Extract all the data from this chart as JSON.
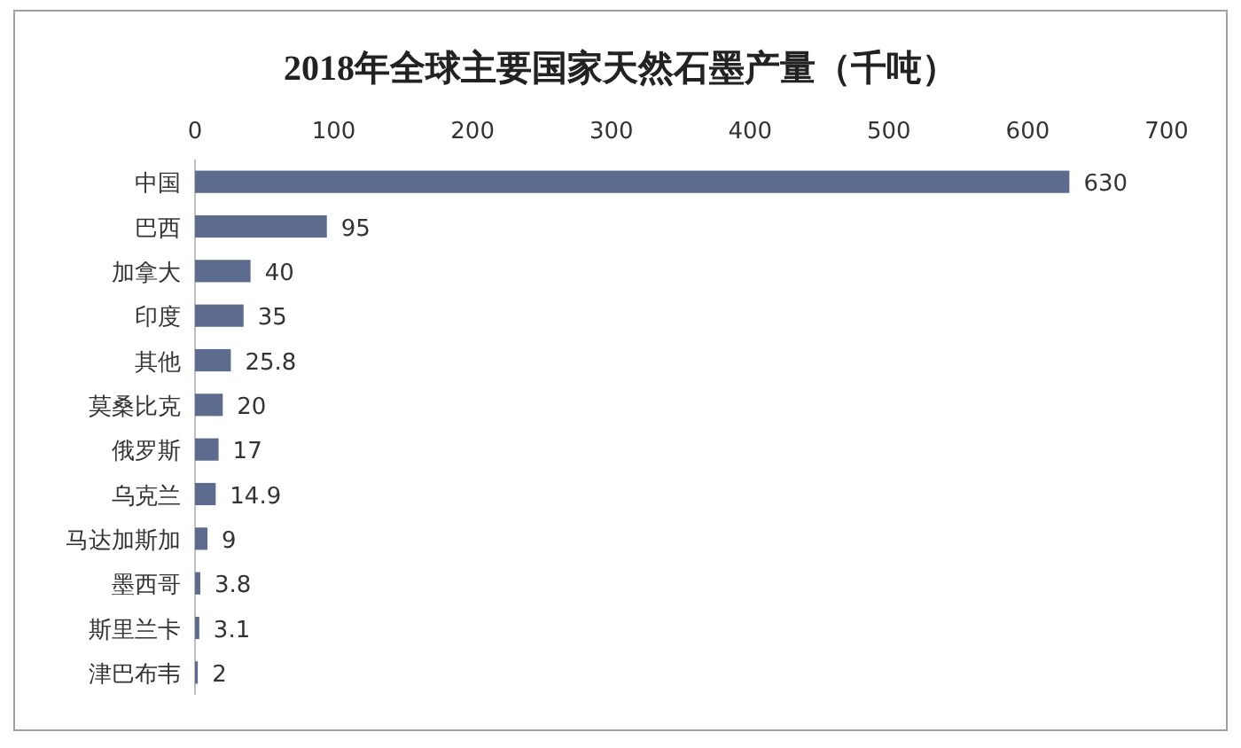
{
  "chart_data": {
    "type": "bar",
    "orientation": "horizontal",
    "title": "2018年全球主要国家天然石墨产量（千吨）",
    "categories": [
      "中国",
      "巴西",
      "加拿大",
      "印度",
      "其他",
      "莫桑比克",
      "俄罗斯",
      "乌克兰",
      "马达加斯加",
      "墨西哥",
      "斯里兰卡",
      "津巴布韦"
    ],
    "values": [
      630,
      95,
      40,
      35,
      25.8,
      20,
      17,
      14.9,
      9,
      3.8,
      3.1,
      2
    ],
    "color": "#5d6b8e",
    "data_labels": true,
    "grid": false,
    "xlim": [
      0,
      700
    ],
    "xticks": [
      0,
      100,
      200,
      300,
      400,
      500,
      600,
      700
    ]
  }
}
